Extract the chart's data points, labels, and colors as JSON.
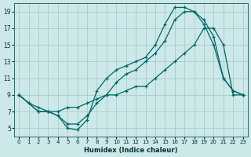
{
  "xlabel": "Humidex (Indice chaleur)",
  "bg_color": "#cce8e8",
  "grid_color": "#aacccc",
  "line_color": "#006666",
  "xlim_min": -0.5,
  "xlim_max": 23.5,
  "ylim_min": 4,
  "ylim_max": 20,
  "xticks": [
    0,
    1,
    2,
    3,
    4,
    5,
    6,
    7,
    8,
    9,
    10,
    11,
    12,
    13,
    14,
    15,
    16,
    17,
    18,
    19,
    20,
    21,
    22,
    23
  ],
  "yticks": [
    5,
    7,
    9,
    11,
    13,
    15,
    17,
    19
  ],
  "line1_x": [
    0,
    1,
    2,
    3,
    4,
    5,
    6,
    7,
    8,
    9,
    10,
    11,
    12,
    13,
    14,
    15,
    16,
    17,
    18,
    19,
    20,
    21,
    22,
    23
  ],
  "line1_y": [
    9,
    8,
    7.5,
    7,
    7,
    7.5,
    7.5,
    8,
    8.5,
    9,
    9,
    9.5,
    10,
    10,
    11,
    12,
    13,
    14,
    15,
    17,
    17,
    15,
    9,
    9
  ],
  "line2_x": [
    0,
    1,
    2,
    3,
    4,
    5,
    6,
    7,
    8,
    9,
    10,
    11,
    12,
    13,
    14,
    15,
    16,
    17,
    18,
    19,
    20,
    21,
    22,
    23
  ],
  "line2_y": [
    9,
    8,
    7,
    7,
    6.5,
    5,
    4.8,
    6,
    9.5,
    11,
    12,
    12.5,
    13,
    13.5,
    15,
    17.5,
    19.5,
    19.5,
    19,
    17.5,
    15,
    11,
    9.5,
    9
  ],
  "line3_x": [
    0,
    2,
    3,
    4,
    5,
    6,
    7,
    8,
    9,
    10,
    11,
    12,
    13,
    14,
    15,
    16,
    17,
    18,
    19,
    20,
    21,
    22,
    23
  ],
  "line3_y": [
    9,
    7,
    7,
    6.5,
    5.5,
    5.5,
    6.5,
    8,
    9,
    10.5,
    11.5,
    12,
    13,
    14,
    15.5,
    18,
    19,
    19,
    18,
    16,
    11,
    9.5,
    9
  ]
}
